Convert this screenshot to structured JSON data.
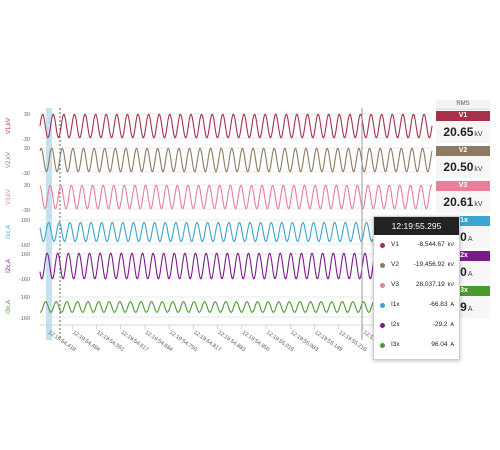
{
  "rms": {
    "title": "RMS",
    "items": [
      {
        "label": "V1",
        "value": "20.65",
        "unit": "kV",
        "color": "#a8314a"
      },
      {
        "label": "V2",
        "value": "20.50",
        "unit": "kV",
        "color": "#8e7a62"
      },
      {
        "label": "V3",
        "value": "20.61",
        "unit": "kV",
        "color": "#ea7f9a"
      },
      {
        "label": "I1x",
        "value": "90",
        "unit": "A",
        "color": "#3ba5cf"
      },
      {
        "label": "I2x",
        "value": "20",
        "unit": "A",
        "color": "#7a1b8c"
      },
      {
        "label": "I3x",
        "value": "09",
        "unit": "A",
        "color": "#4b9a2f"
      }
    ]
  },
  "tooltip": {
    "time": "12:19:55.295",
    "rows": [
      {
        "name": "V1",
        "value": "-8,544.67",
        "unit": "kV",
        "color": "#a8314a"
      },
      {
        "name": "V2",
        "value": "-19,456.92",
        "unit": "kV",
        "color": "#8e7a62"
      },
      {
        "name": "V3",
        "value": "28,037.19",
        "unit": "kV",
        "color": "#ea7f9a"
      },
      {
        "name": "I1x",
        "value": "-66.83",
        "unit": "A",
        "color": "#3ba5cf"
      },
      {
        "name": "I2x",
        "value": "-29.2",
        "unit": "A",
        "color": "#7a1b8c"
      },
      {
        "name": "I3x",
        "value": "96.04",
        "unit": "A",
        "color": "#4b9a2f"
      }
    ]
  },
  "chart_data": {
    "type": "line",
    "cycles_visible": 37,
    "x_tick_labels": [
      "12:19:54.418",
      "12:19:54.484",
      "12:19:54.551",
      "12:19:54.617",
      "12:19:54.684",
      "12:19:54.750",
      "12:19:54.817",
      "12:19:54.883",
      "12:19:54.950",
      "12:19:55.016",
      "12:19:55.083",
      "12:19:55.149",
      "12:19:55.216",
      "12:19:55.282"
    ],
    "series": [
      {
        "name": "V1",
        "axis_label": "V1,kV",
        "color": "#a8314a",
        "ticks": [
          "30",
          "-30"
        ],
        "ylim": [
          -30,
          30
        ],
        "amplitude": 29.2
      },
      {
        "name": "V2",
        "axis_label": "V2,kV",
        "color": "#8e7a62",
        "ticks": [
          "30",
          "-30"
        ],
        "ylim": [
          -30,
          30
        ],
        "amplitude": 29.0
      },
      {
        "name": "V3",
        "axis_label": "V3,kV",
        "color": "#ea7f9a",
        "ticks": [
          "30",
          "-30"
        ],
        "ylim": [
          -30,
          30
        ],
        "amplitude": 29.1
      },
      {
        "name": "I1x",
        "axis_label": "I1x,A",
        "color": "#3ba5cf",
        "ticks": [
          "160",
          "-160"
        ],
        "ylim": [
          -160,
          160
        ],
        "amplitude": 127
      },
      {
        "name": "I2x",
        "axis_label": "I2x,A",
        "color": "#7a1b8c",
        "ticks": [
          "160",
          "-160"
        ],
        "ylim": [
          -160,
          160
        ],
        "amplitude": 170
      },
      {
        "name": "I3x",
        "axis_label": "I3x,A",
        "color": "#4b9a2f",
        "ticks": [
          "160",
          "-160"
        ],
        "ylim": [
          -160,
          160
        ],
        "amplitude": 85
      }
    ]
  }
}
